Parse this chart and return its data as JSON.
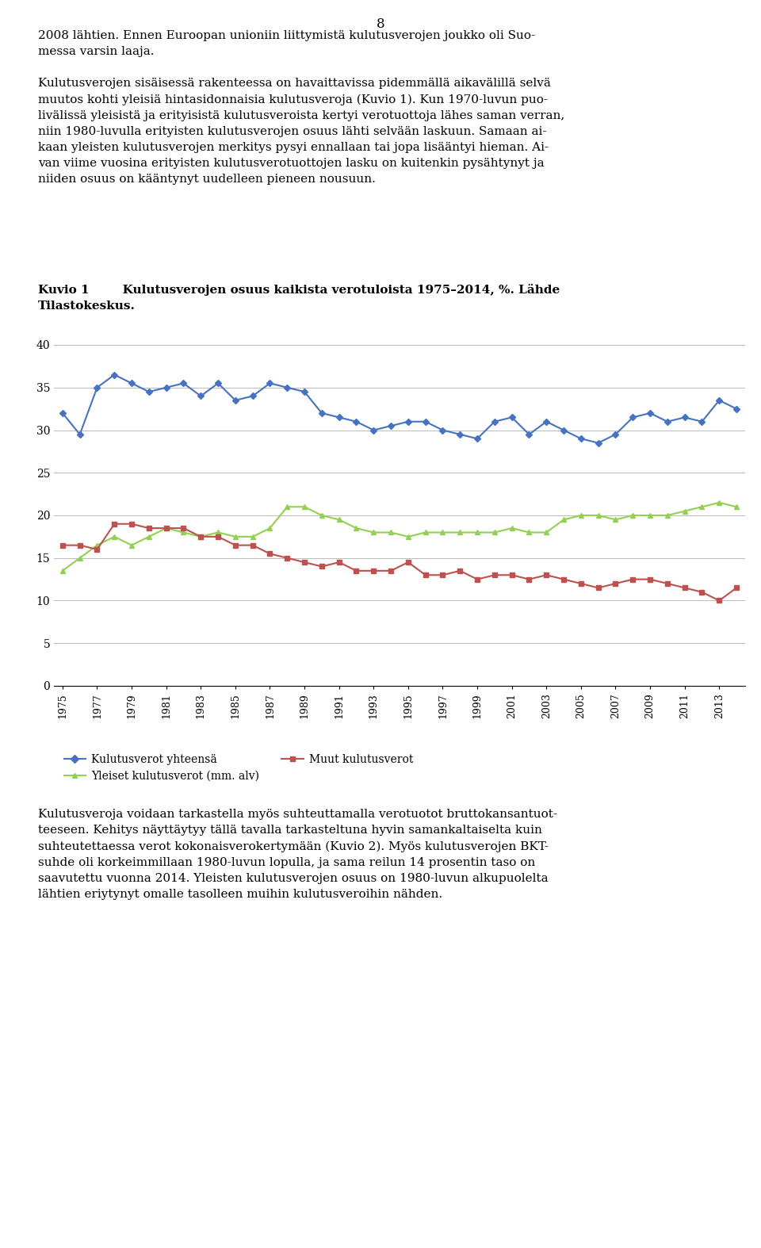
{
  "years": [
    1975,
    1976,
    1977,
    1978,
    1979,
    1980,
    1981,
    1982,
    1983,
    1984,
    1985,
    1986,
    1987,
    1988,
    1989,
    1990,
    1991,
    1992,
    1993,
    1994,
    1995,
    1996,
    1997,
    1998,
    1999,
    2000,
    2001,
    2002,
    2003,
    2004,
    2005,
    2006,
    2007,
    2008,
    2009,
    2010,
    2011,
    2012,
    2013,
    2014
  ],
  "kulutusverot_yhteensa": [
    32.0,
    29.5,
    35.0,
    36.5,
    35.5,
    34.5,
    35.0,
    35.5,
    34.0,
    35.5,
    33.5,
    34.0,
    35.5,
    35.0,
    34.5,
    32.0,
    31.5,
    31.0,
    30.0,
    30.5,
    31.0,
    31.0,
    30.0,
    29.5,
    29.0,
    31.0,
    31.5,
    29.5,
    31.0,
    30.0,
    29.0,
    28.5,
    29.5,
    31.5,
    32.0,
    31.0,
    31.5,
    31.0,
    33.5,
    32.5
  ],
  "yleiset_kulutusverot": [
    13.5,
    15.0,
    16.5,
    17.5,
    16.5,
    17.5,
    18.5,
    18.0,
    17.5,
    18.0,
    17.5,
    17.5,
    18.5,
    21.0,
    21.0,
    20.0,
    19.5,
    18.5,
    18.0,
    18.0,
    17.5,
    18.0,
    18.0,
    18.0,
    18.0,
    18.0,
    18.5,
    18.0,
    18.0,
    19.5,
    20.0,
    20.0,
    19.5,
    20.0,
    20.0,
    20.0,
    20.5,
    21.0,
    21.5,
    21.0
  ],
  "muut_kulutusverot": [
    16.5,
    16.5,
    16.0,
    19.0,
    19.0,
    18.5,
    18.5,
    18.5,
    17.5,
    17.5,
    16.5,
    16.5,
    15.5,
    15.0,
    14.5,
    14.0,
    14.5,
    13.5,
    13.5,
    13.5,
    14.5,
    13.0,
    13.0,
    13.5,
    12.5,
    13.0,
    13.0,
    12.5,
    13.0,
    12.5,
    12.0,
    11.5,
    12.0,
    12.5,
    12.5,
    12.0,
    11.5,
    11.0,
    10.0,
    11.5
  ],
  "blue_color": "#4472C4",
  "green_color": "#92D050",
  "red_color": "#C0504D",
  "yticks": [
    0,
    5,
    10,
    15,
    20,
    25,
    30,
    35,
    40
  ],
  "page_number": "8",
  "kuvio_label": "Kuvio 1",
  "kuvio_title": "Kulutusverojen osuus kaikista verotuloista 1975–2014, %. Lähde",
  "kuvio_title2": "Tilastokeskus.",
  "legend1": "Kulutusverot yhteensä",
  "legend2": "Yleiset kulutusverot (mm. alv)",
  "legend3": "Muut kulutusverot",
  "top_para1_line1": "2008 lähtien. Ennen Euroopan unioniin liittymistä kulutusverojen joukko oli Suo-",
  "top_para1_line2": "messa varsin laaja.",
  "top_para2_line1": "Kulutusverojen sisäisessä rakenteessa on havaittavissa pidemmällä aikavälillä selvä",
  "top_para2_line2": "muutos kohti yleisiä hintasidonnaisia kulutusveroja (Kuvio 1). Kun 1970-luvun puo-",
  "top_para2_line3": "livälissä yleisistä ja erityisistä kulutusveroista kertyi verotuottoja lähes saman verran,",
  "top_para2_line4": "niin 1980-luvulla erityisten kulutusverojen osuus lähti selvään laskuun. Samaan ai-",
  "top_para2_line5": "kaan yleisten kulutusverojen merkitys pysyi ennallaan tai jopa lisääntyi hieman. Ai-",
  "top_para2_line6": "van viime vuosina erityisten kulutusverotuottojen lasku on kuitenkin pysähtynyt ja",
  "top_para2_line7": "niiden osuus on kääntynyt uudelleen pieneen nousuun.",
  "bot_para1_line1": "Kulutusveroja voidaan tarkastella myös suhteuttamalla verotuotot bruttokansantuot-",
  "bot_para1_line2": "teeseen. Kehitys näyttäytyy tällä tavalla tarkasteltuna hyvin samankaltaiselta kuin",
  "bot_para1_line3": "suhteutettaessa verot kokonaisverokertymään (Kuvio 2). Myös kulutusverojen BKT-",
  "bot_para1_line4": "suhde oli korkeimmillaan 1980-luvun lopulla, ja sama reilun 14 prosentin taso on",
  "bot_para1_line5": "saavutettu vuonna 2014. Yleisten kulutusverojen osuus on 1980-luvun alkupuolelta",
  "bot_para1_line6": "lähtien eriytynyt omalle tasolleen muihin kulutusveroihin nähden."
}
